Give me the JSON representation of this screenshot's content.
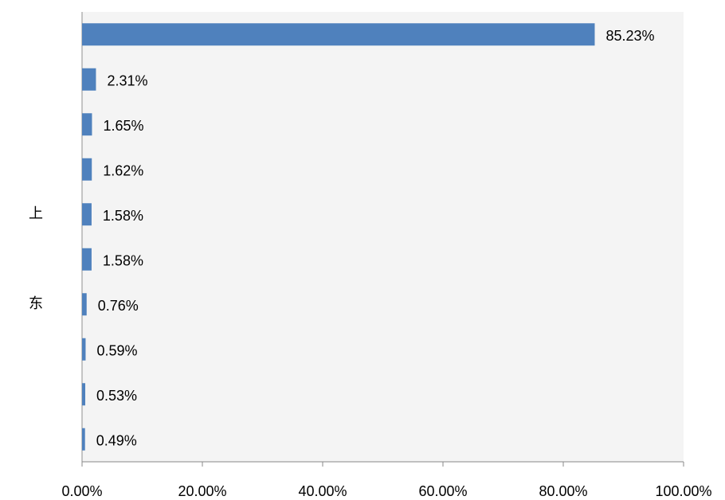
{
  "chart_data": {
    "type": "hbar",
    "categories": [
      null,
      null,
      null,
      null,
      "上",
      null,
      "东",
      null,
      null,
      null
    ],
    "values": [
      85.23,
      2.31,
      1.65,
      1.62,
      1.58,
      1.58,
      0.76,
      0.59,
      0.53,
      0.49
    ],
    "value_labels": [
      "85.23%",
      "2.31%",
      "1.65%",
      "1.62%",
      "1.58%",
      "1.58%",
      "0.76%",
      "0.59%",
      "0.53%",
      "0.49%"
    ],
    "color": "#4f81bd",
    "xlim": [
      0,
      100
    ],
    "xticks": [
      {
        "value": 0,
        "label": "0.00%"
      },
      {
        "value": 20,
        "label": "20.00%"
      },
      {
        "value": 40,
        "label": "40.00%"
      },
      {
        "value": 60,
        "label": "60.00%"
      },
      {
        "value": 80,
        "label": "80.00%"
      },
      {
        "value": 100,
        "label": "100.00%"
      }
    ]
  }
}
